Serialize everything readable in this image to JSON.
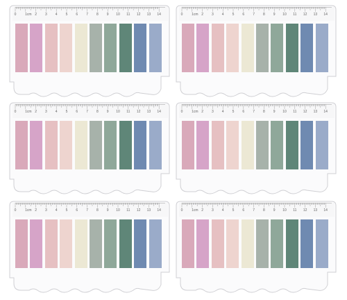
{
  "product": {
    "set_count": 6,
    "tabs_per_set": 10,
    "ruler": {
      "unit_label": "1cm",
      "labels": [
        "0",
        "1cm",
        "2",
        "3",
        "4",
        "5",
        "6",
        "7",
        "8",
        "9",
        "10",
        "11",
        "12",
        "13",
        "14"
      ]
    },
    "tab_colors": [
      "#d9a9ba",
      "#d6a4c8",
      "#e6c0c2",
      "#eed4cf",
      "#ece8d4",
      "#a7b2aa",
      "#8fa89a",
      "#5f8678",
      "#6f8ab1",
      "#9aabc9"
    ],
    "card_color": "#fbfbfc",
    "outline_color": "#cfcfd3"
  }
}
